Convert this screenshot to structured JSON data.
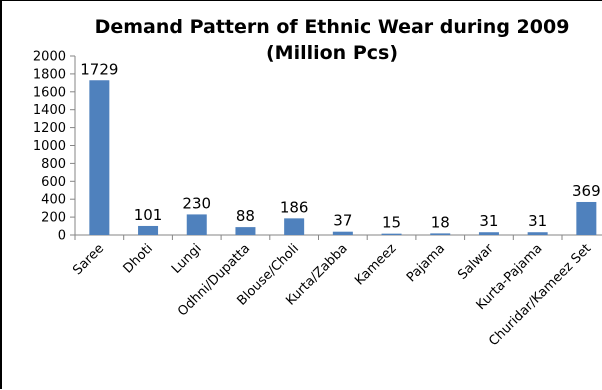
{
  "chart_data": {
    "type": "bar",
    "title": "Demand Pattern of Ethnic Wear during 2009",
    "subtitle": "(Million Pcs)",
    "categories": [
      "Saree",
      "Dhoti",
      "Lungi",
      "Odhni/Dupatta",
      "Blouse/Choli",
      "Kurta/Zabba",
      "Kameez",
      "Pajama",
      "Salwar",
      "Kurta-Pajama",
      "Churidar/Kameez Set"
    ],
    "values": [
      1729,
      101,
      230,
      88,
      186,
      37,
      15,
      18,
      31,
      31,
      369
    ],
    "data_labels": [
      "1729",
      "101",
      "230",
      "88",
      "186",
      "37",
      "15",
      "18",
      "31",
      "31",
      "369"
    ],
    "y_ticks": [
      "0",
      "200",
      "400",
      "600",
      "800",
      "1000",
      "1200",
      "1400",
      "1600",
      "1800",
      "2000"
    ],
    "ylim": [
      0,
      2000
    ],
    "xlabel": "",
    "ylabel": "",
    "grid": false,
    "legend": "none",
    "bar_color": "#4F81BD"
  }
}
